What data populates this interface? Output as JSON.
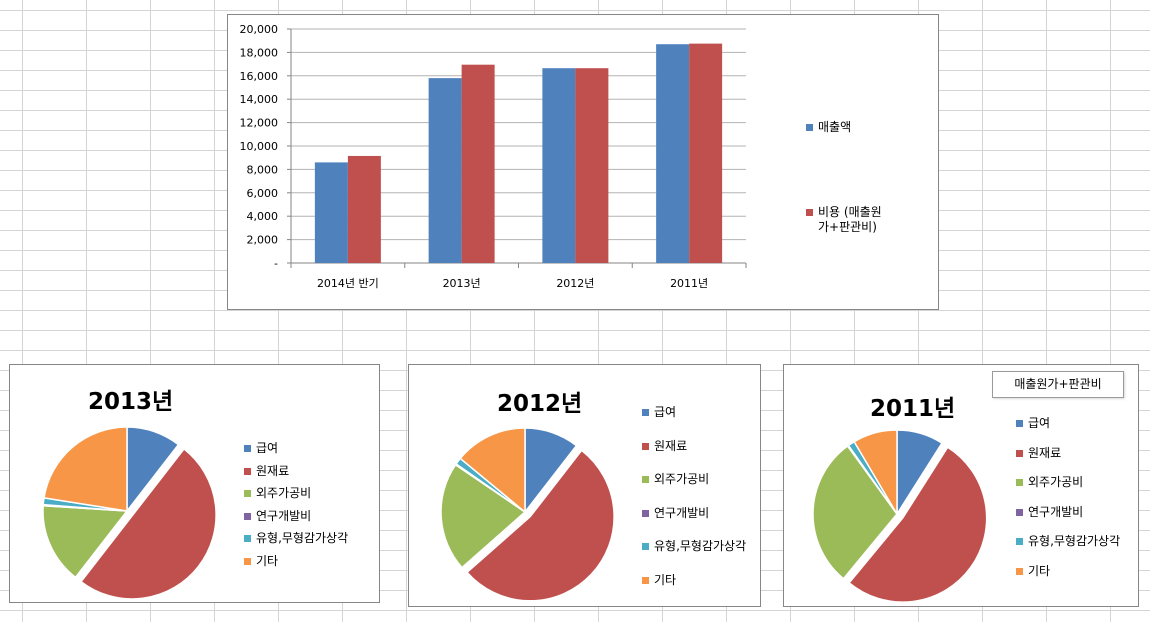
{
  "colors": {
    "blue": "#4F81BD",
    "red": "#C0504D",
    "green": "#9BBB59",
    "purple": "#8064A2",
    "teal": "#4BACC6",
    "orange": "#F79646"
  },
  "bar_chart_legend": [
    "매출액",
    "비용 (매출원가+판관비)"
  ],
  "pie_legend": [
    "급여",
    "원재료",
    "외주가공비",
    "연구개발비",
    "유형,무형감가상각",
    "기타"
  ],
  "pie_2011_box_label": "매출원가+판관비",
  "chart_data": [
    {
      "type": "bar",
      "categories": [
        "2014년 반기",
        "2013년",
        "2012년",
        "2011년"
      ],
      "series": [
        {
          "name": "매출액",
          "values": [
            8600,
            15800,
            16650,
            18700
          ]
        },
        {
          "name": "비용 (매출원가+판관비)",
          "values": [
            9150,
            16950,
            16650,
            18750
          ]
        }
      ],
      "ylim": [
        0,
        20000
      ],
      "yticks": [
        "-",
        "2,000",
        "4,000",
        "6,000",
        "8,000",
        "10,000",
        "12,000",
        "14,000",
        "16,000",
        "18,000",
        "20,000"
      ],
      "grid": true,
      "legend_position": "right"
    },
    {
      "type": "pie",
      "title": "2013년",
      "labels": [
        "급여",
        "원재료",
        "외주가공비",
        "연구개발비",
        "유형,무형감가상각",
        "기타"
      ],
      "values": [
        10.5,
        50,
        15.5,
        0.2,
        1.3,
        22.5
      ],
      "exploded": [
        "원재료"
      ],
      "legend_position": "right"
    },
    {
      "type": "pie",
      "title": "2012년",
      "labels": [
        "급여",
        "원재료",
        "외주가공비",
        "연구개발비",
        "유형,무형감가상각",
        "기타"
      ],
      "values": [
        10.5,
        53,
        21,
        0.2,
        1.3,
        14
      ],
      "exploded": [
        "원재료"
      ],
      "legend_position": "right"
    },
    {
      "type": "pie",
      "title": "2011년",
      "labels": [
        "급여",
        "원재료",
        "외주가공비",
        "연구개발비",
        "유형,무형감가상각",
        "기타"
      ],
      "values": [
        9,
        52,
        29,
        0.2,
        1.3,
        8.5
      ],
      "exploded": [
        "원재료"
      ],
      "legend_position": "right"
    }
  ]
}
